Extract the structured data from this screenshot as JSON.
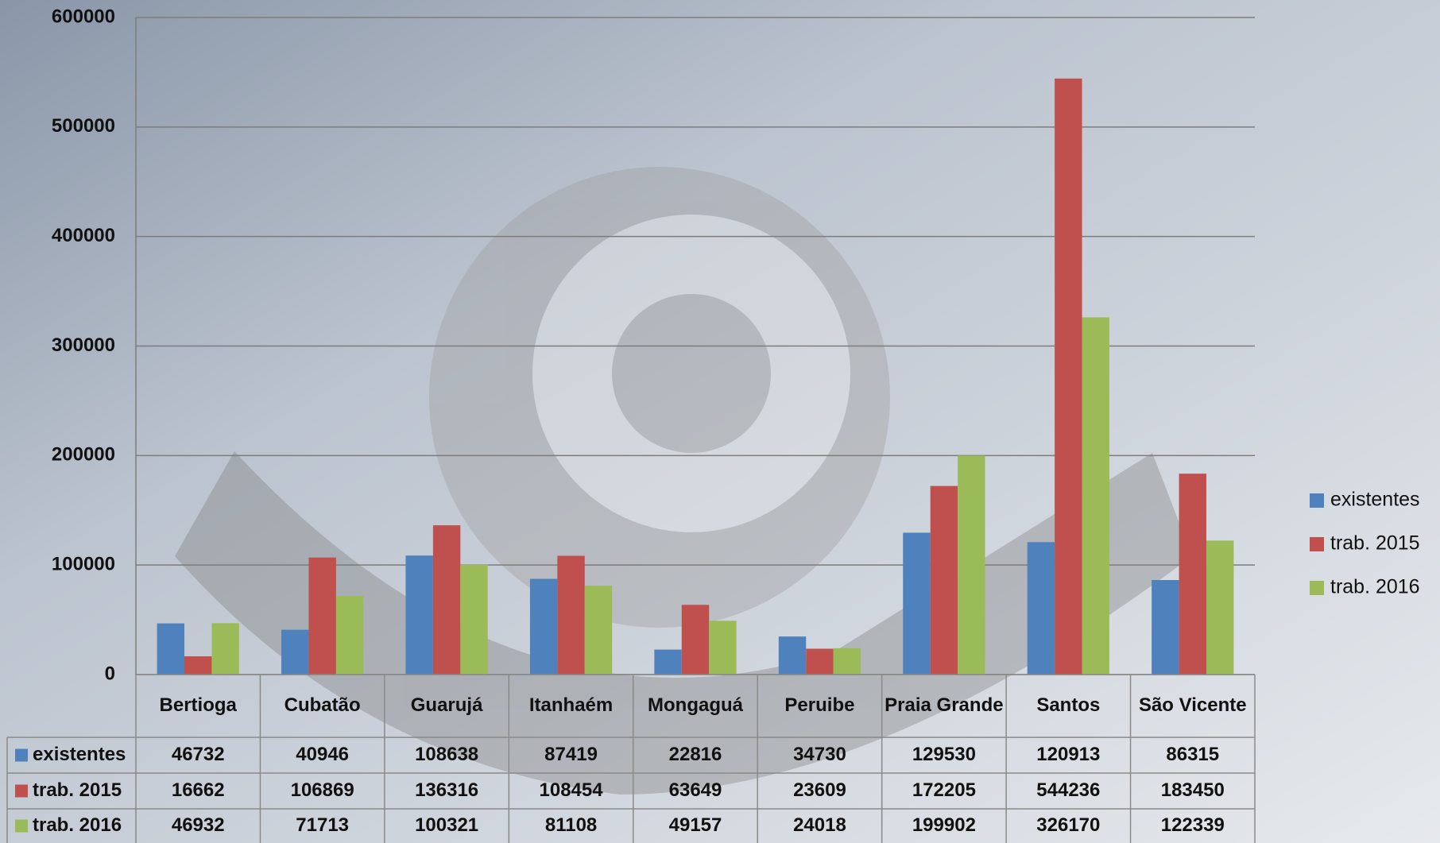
{
  "chart_data": {
    "type": "bar",
    "categories": [
      "Bertioga",
      "Cubatão",
      "Guarujá",
      "Itanhaém",
      "Mongaguá",
      "Peruibe",
      "Praia Grande",
      "Santos",
      "São Vicente"
    ],
    "series": [
      {
        "name": "existentes",
        "color": "#4f81bd",
        "values": [
          46732,
          40946,
          108638,
          87419,
          22816,
          34730,
          129530,
          120913,
          86315
        ]
      },
      {
        "name": "trab. 2015",
        "color": "#c0504d",
        "values": [
          16662,
          106869,
          136316,
          108454,
          63649,
          23609,
          172205,
          544236,
          183450
        ]
      },
      {
        "name": "trab. 2016",
        "color": "#9bbb59",
        "values": [
          46932,
          71713,
          100321,
          81108,
          49157,
          24018,
          199902,
          326170,
          122339
        ]
      }
    ],
    "ylim": [
      0,
      600000
    ],
    "yticks": [
      0,
      100000,
      200000,
      300000,
      400000,
      500000,
      600000
    ],
    "grid": true,
    "legend": "right"
  }
}
